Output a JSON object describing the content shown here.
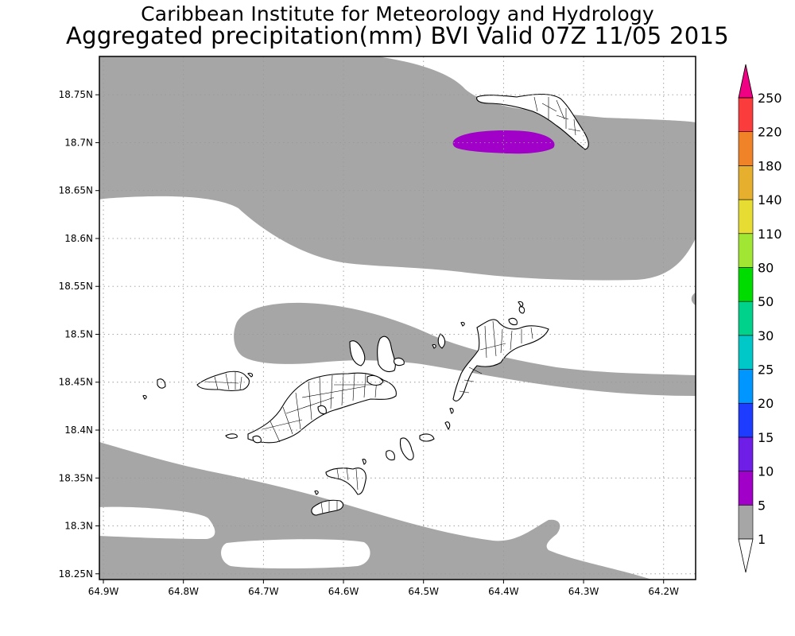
{
  "header": {
    "title": "Caribbean Institute for Meteorology and Hydrology",
    "subtitle": "Aggregated precipitation(mm) BVI Valid 07Z 11/05 2015"
  },
  "map": {
    "lon_range": [
      -64.905,
      -64.16
    ],
    "lat_range": [
      18.244,
      18.79
    ],
    "lat_ticks": [
      {
        "value": 18.75,
        "label": "18.75N"
      },
      {
        "value": 18.7,
        "label": "18.7N"
      },
      {
        "value": 18.65,
        "label": "18.65N"
      },
      {
        "value": 18.6,
        "label": "18.6N"
      },
      {
        "value": 18.55,
        "label": "18.55N"
      },
      {
        "value": 18.5,
        "label": "18.5N"
      },
      {
        "value": 18.45,
        "label": "18.45N"
      },
      {
        "value": 18.4,
        "label": "18.4N"
      },
      {
        "value": 18.35,
        "label": "18.35N"
      },
      {
        "value": 18.3,
        "label": "18.3N"
      },
      {
        "value": 18.25,
        "label": "18.25N"
      }
    ],
    "lon_ticks": [
      {
        "value": -64.9,
        "label": "64.9W"
      },
      {
        "value": -64.8,
        "label": "64.8W"
      },
      {
        "value": -64.7,
        "label": "64.7W"
      },
      {
        "value": -64.6,
        "label": "64.6W"
      },
      {
        "value": -64.5,
        "label": "64.5W"
      },
      {
        "value": -64.4,
        "label": "64.4W"
      },
      {
        "value": -64.3,
        "label": "64.3W"
      },
      {
        "value": -64.2,
        "label": "64.2W"
      }
    ],
    "gridlines": true,
    "gridline_style": "dotted"
  },
  "colorbar": {
    "levels": [
      {
        "label": "1",
        "color": "#ffffff"
      },
      {
        "label": "5",
        "color": "#a6a6a6"
      },
      {
        "label": "10",
        "color": "#a000c8"
      },
      {
        "label": "15",
        "color": "#6e1ee6"
      },
      {
        "label": "20",
        "color": "#1e3cff"
      },
      {
        "label": "25",
        "color": "#0096ff"
      },
      {
        "label": "30",
        "color": "#00c8c8"
      },
      {
        "label": "50",
        "color": "#00d28c"
      },
      {
        "label": "80",
        "color": "#00dc00"
      },
      {
        "label": "110",
        "color": "#a0e632"
      },
      {
        "label": "140",
        "color": "#e6dc32"
      },
      {
        "label": "180",
        "color": "#e6af2d"
      },
      {
        "label": "220",
        "color": "#f08228"
      },
      {
        "label": "250",
        "color": "#fa3c3c"
      }
    ],
    "top_arrow_color": "#f00082",
    "bottom_arrow_color": "#ffffff"
  },
  "colors": {
    "precip_1_5": "#a6a6a6",
    "precip_5_10": "#a000c8",
    "land_fill": "#ffffff",
    "land_outline": "#000000"
  }
}
